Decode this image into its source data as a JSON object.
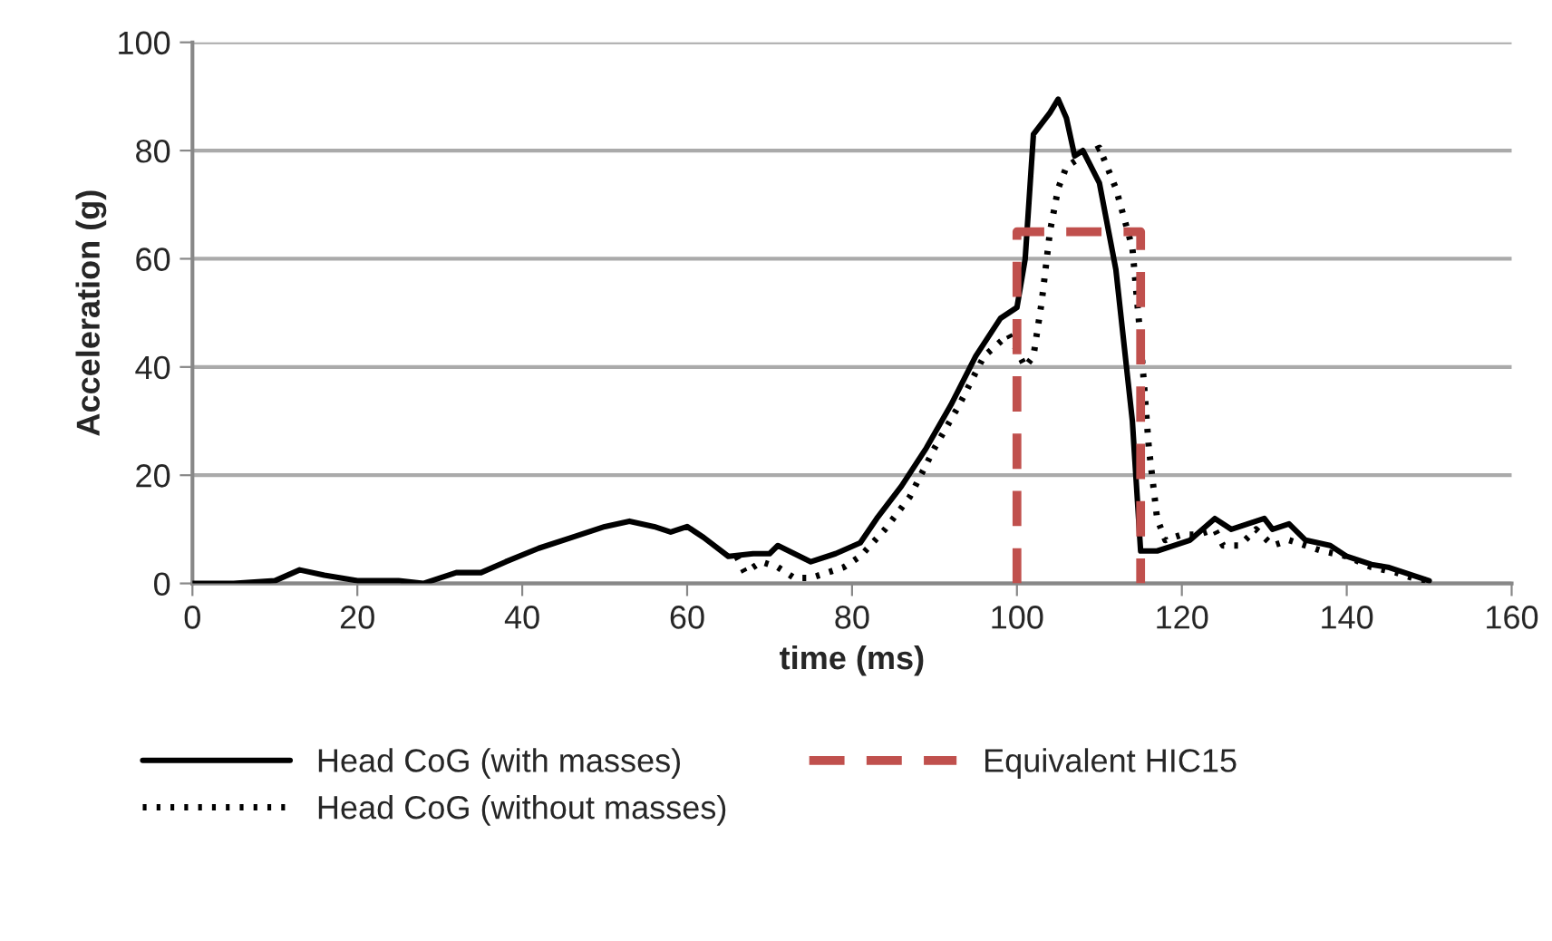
{
  "chart_data": {
    "type": "line",
    "xlabel": "time (ms)",
    "ylabel": "Acceleration (g)",
    "xlim": [
      0,
      160
    ],
    "xticks": [
      0,
      20,
      40,
      60,
      80,
      100,
      120,
      140,
      160
    ],
    "ylim": [
      0,
      100
    ],
    "yticks": [
      0,
      20,
      40,
      60,
      80,
      100
    ],
    "grid": "y",
    "legend": "bottom",
    "marker": "none",
    "series": [
      {
        "name": "Head CoG (with masses)",
        "color": "#000000",
        "line_style": "solid",
        "x": [
          0,
          5,
          10,
          13,
          16,
          20,
          25,
          28,
          32,
          35,
          38,
          42,
          46,
          50,
          53,
          56,
          58,
          60,
          62,
          65,
          68,
          70,
          71,
          73,
          75,
          78,
          81,
          83,
          86,
          89,
          92,
          95,
          98,
          100,
          101,
          102,
          104,
          105,
          106,
          107,
          108,
          110,
          112,
          114,
          115,
          117,
          119,
          121,
          124,
          126,
          128,
          130,
          131,
          133,
          135,
          138,
          140,
          143,
          145,
          148,
          150
        ],
        "values": [
          0,
          0,
          0.5,
          2.5,
          1.5,
          0.5,
          0.5,
          0,
          2,
          2,
          4,
          6.5,
          8.5,
          10.5,
          11.5,
          10.5,
          9.5,
          10.5,
          8.5,
          5,
          5.5,
          5.5,
          7,
          5.5,
          4,
          5.5,
          7.5,
          12,
          18,
          25,
          33,
          42,
          49,
          51,
          60,
          83,
          87,
          89.5,
          86,
          79,
          80,
          74,
          58,
          30,
          6,
          6,
          7,
          8,
          12,
          10,
          11,
          12,
          10,
          11,
          8,
          7,
          5,
          3.5,
          3,
          1.5,
          0.5
        ]
      },
      {
        "name": "Head CoG (without masses)",
        "color": "#000000",
        "line_style": "dotted",
        "x": [
          66,
          67,
          69,
          71,
          73,
          75,
          77,
          79,
          81,
          84,
          87,
          90,
          93,
          96,
          99,
          100,
          101,
          102,
          103,
          104,
          105,
          106,
          108,
          110,
          112,
          114,
          115,
          116,
          117,
          118,
          120,
          122,
          124,
          125,
          127,
          129,
          131,
          133,
          135,
          137,
          140,
          143,
          146,
          148,
          150
        ],
        "values": [
          5,
          2,
          4,
          3,
          1,
          1,
          2,
          3,
          5,
          10,
          16,
          25,
          33,
          42,
          46,
          43,
          40,
          42,
          52,
          65,
          73,
          77,
          79,
          80.5,
          73,
          62,
          45,
          25,
          12,
          8,
          9,
          9,
          10,
          7,
          7,
          10,
          7,
          8,
          7,
          6,
          5,
          3,
          2,
          1,
          0.5
        ]
      },
      {
        "name": "Equivalent HIC15",
        "color": "#c0504d",
        "line_style": "dashed",
        "x": [
          100,
          100,
          115,
          115
        ],
        "values": [
          0,
          65,
          65,
          0
        ]
      }
    ]
  }
}
